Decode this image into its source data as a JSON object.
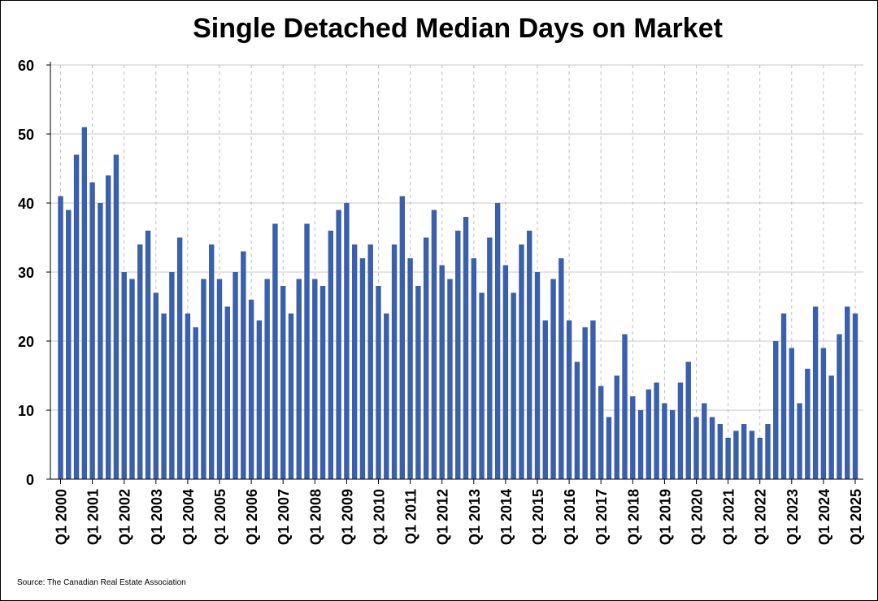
{
  "chart_data": {
    "type": "bar",
    "title": "Single Detached Median Days on Market",
    "source": "Source: The Canadian Real Estate Association",
    "xlabel": "",
    "ylabel": "",
    "ylim": [
      0,
      60
    ],
    "yticks": [
      0,
      10,
      20,
      30,
      40,
      50,
      60
    ],
    "grid": {
      "horizontal": true,
      "vertical_dashed": true
    },
    "bar_color": "#3a5fad",
    "x_tick_labels": [
      "Q1 2000",
      "Q1 2001",
      "Q1 2002",
      "Q1 2003",
      "Q1 2004",
      "Q1 2005",
      "Q1 2006",
      "Q1 2007",
      "Q1 2008",
      "Q1 2009",
      "Q1 2010",
      "Q1 2011",
      "Q1 2012",
      "Q1 2013",
      "Q1 2014",
      "Q1 2015",
      "Q1 2016",
      "Q1 2017",
      "Q1 2018",
      "Q1 2019",
      "Q1 2020",
      "Q1 2021",
      "Q1 2022",
      "Q1 2023",
      "Q1 2024",
      "Q1 2025"
    ],
    "categories": [
      "Q1 2000",
      "Q2 2000",
      "Q3 2000",
      "Q4 2000",
      "Q1 2001",
      "Q2 2001",
      "Q3 2001",
      "Q4 2001",
      "Q1 2002",
      "Q2 2002",
      "Q3 2002",
      "Q4 2002",
      "Q1 2003",
      "Q2 2003",
      "Q3 2003",
      "Q4 2003",
      "Q1 2004",
      "Q2 2004",
      "Q3 2004",
      "Q4 2004",
      "Q1 2005",
      "Q2 2005",
      "Q3 2005",
      "Q4 2005",
      "Q1 2006",
      "Q2 2006",
      "Q3 2006",
      "Q4 2006",
      "Q1 2007",
      "Q2 2007",
      "Q3 2007",
      "Q4 2007",
      "Q1 2008",
      "Q2 2008",
      "Q3 2008",
      "Q4 2008",
      "Q1 2009",
      "Q2 2009",
      "Q3 2009",
      "Q4 2009",
      "Q1 2010",
      "Q2 2010",
      "Q3 2010",
      "Q4 2010",
      "Q1 2011",
      "Q2 2011",
      "Q3 2011",
      "Q4 2011",
      "Q1 2012",
      "Q2 2012",
      "Q3 2012",
      "Q4 2012",
      "Q1 2013",
      "Q2 2013",
      "Q3 2013",
      "Q4 2013",
      "Q1 2014",
      "Q2 2014",
      "Q3 2014",
      "Q4 2014",
      "Q1 2015",
      "Q2 2015",
      "Q3 2015",
      "Q4 2015",
      "Q1 2016",
      "Q2 2016",
      "Q3 2016",
      "Q4 2016",
      "Q1 2017",
      "Q2 2017",
      "Q3 2017",
      "Q4 2017",
      "Q1 2018",
      "Q2 2018",
      "Q3 2018",
      "Q4 2018",
      "Q1 2019",
      "Q2 2019",
      "Q3 2019",
      "Q4 2019",
      "Q1 2020",
      "Q2 2020",
      "Q3 2020",
      "Q4 2020",
      "Q1 2021",
      "Q2 2021",
      "Q3 2021",
      "Q4 2021",
      "Q1 2022",
      "Q2 2022",
      "Q3 2022",
      "Q4 2022",
      "Q1 2023",
      "Q2 2023",
      "Q3 2023",
      "Q4 2023",
      "Q1 2024",
      "Q2 2024",
      "Q3 2024",
      "Q4 2024",
      "Q1 2025"
    ],
    "values": [
      41,
      39,
      47,
      51,
      43,
      40,
      44,
      47,
      30,
      29,
      34,
      36,
      27,
      24,
      30,
      35,
      24,
      22,
      29,
      34,
      29,
      25,
      30,
      33,
      26,
      23,
      29,
      37,
      28,
      24,
      29,
      37,
      29,
      28,
      36,
      39,
      40,
      34,
      32,
      34,
      28,
      24,
      34,
      41,
      32,
      28,
      35,
      39,
      31,
      29,
      36,
      38,
      32,
      27,
      35,
      40,
      31,
      27,
      34,
      36,
      30,
      23,
      29,
      32,
      23,
      17,
      22,
      23,
      13.5,
      9,
      15,
      21,
      12,
      10,
      13,
      14,
      11,
      10,
      14,
      17,
      9,
      11,
      9,
      8,
      6,
      7,
      8,
      7,
      6,
      8,
      20,
      24,
      19,
      11,
      16,
      25,
      19,
      15,
      21,
      25,
      24
    ]
  }
}
